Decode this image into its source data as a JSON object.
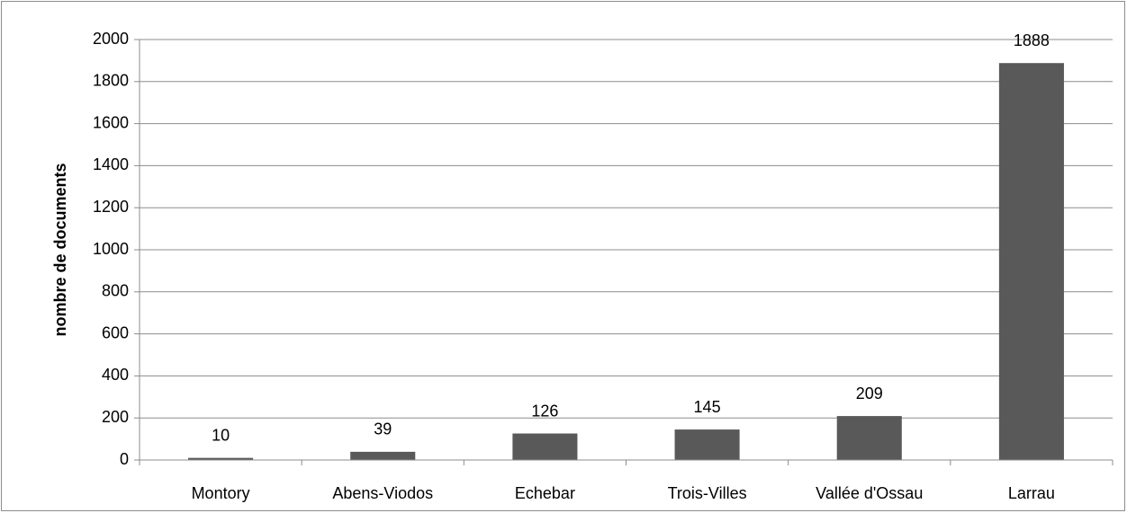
{
  "chart_data": {
    "type": "bar",
    "y_label": "nombre de documents",
    "categories": [
      "Montory",
      "Abens-Viodos",
      "Echebar",
      "Trois-Villes",
      "Vallée d'Ossau",
      "Larrau"
    ],
    "values": [
      10,
      39,
      126,
      145,
      209,
      1888
    ],
    "color": "#595959",
    "ylim": [
      0,
      2000
    ],
    "yticks": [
      0,
      200,
      400,
      600,
      800,
      1000,
      1200,
      1400,
      1600,
      1800,
      2000
    ],
    "grid": true
  }
}
